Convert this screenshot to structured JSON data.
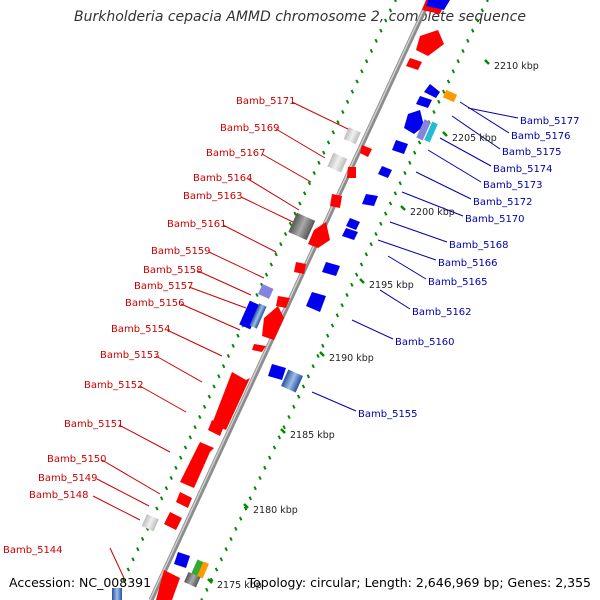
{
  "title": "Burkholderia cepacia AMMD chromosome 2, complete sequence",
  "footer": {
    "accession": "Accession: NC_008391",
    "topology": "Topology: circular; Length: 2,646,969 bp; Genes: 2,355"
  },
  "colors": {
    "forward_label": "#cc0000",
    "reverse_label": "#0000aa",
    "forward_gene": "#ff0000",
    "reverse_gene": "#0000ee",
    "backbone": "#8c8c8c",
    "tick": "#008800"
  },
  "scale_labels": [
    "2175 kbp",
    "2180 kbp",
    "2185 kbp",
    "2190 kbp",
    "2195 kbp",
    "2200 kbp",
    "2205 kbp",
    "2210 kbp"
  ],
  "forward_gene_labels": [
    "Bamb_5144",
    "Bamb_5148",
    "Bamb_5149",
    "Bamb_5150",
    "Bamb_5151",
    "Bamb_5152",
    "Bamb_5153",
    "Bamb_5154",
    "Bamb_5156",
    "Bamb_5157",
    "Bamb_5158",
    "Bamb_5159",
    "Bamb_5161",
    "Bamb_5163",
    "Bamb_5164",
    "Bamb_5167",
    "Bamb_5169",
    "Bamb_5171"
  ],
  "reverse_gene_labels": [
    "Bamb_5155",
    "Bamb_5160",
    "Bamb_5162",
    "Bamb_5165",
    "Bamb_5166",
    "Bamb_5168",
    "Bamb_5170",
    "Bamb_5172",
    "Bamb_5173",
    "Bamb_5174",
    "Bamb_5175",
    "Bamb_5176",
    "Bamb_5177"
  ]
}
